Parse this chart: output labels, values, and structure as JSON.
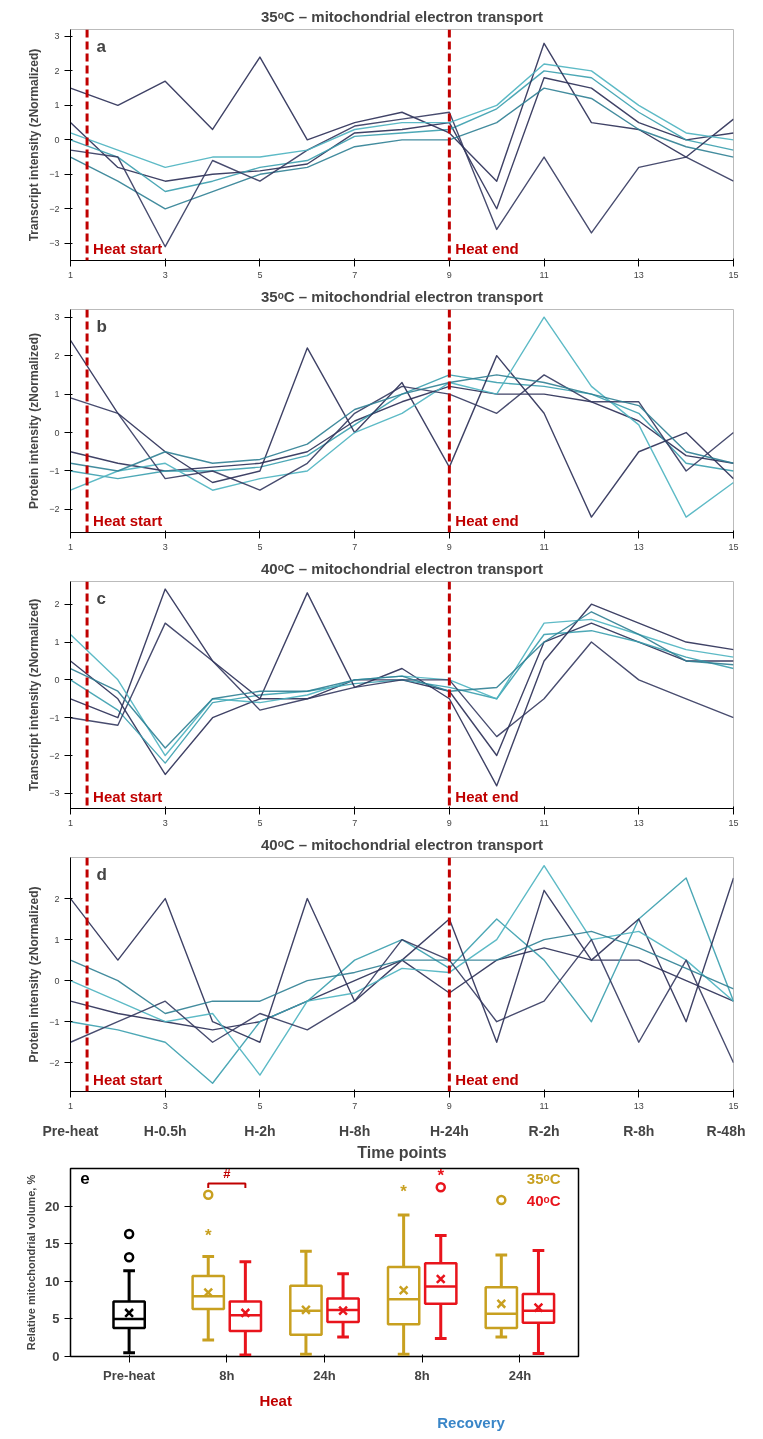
{
  "chart_data": [
    {
      "type": "line",
      "title": "35ᵒC – mitochondrial electron transport",
      "ylabel": "Transcript intensity (zNormalized)",
      "annotations": [
        "a"
      ],
      "x": [
        1,
        2,
        3,
        4,
        5,
        6,
        7,
        8,
        9,
        10,
        11,
        12,
        13,
        14,
        15
      ],
      "xlim": [
        1,
        15
      ],
      "xticks": [
        1,
        3,
        5,
        7,
        9,
        11,
        13,
        15
      ],
      "ylim": [
        -3.5,
        3.2
      ],
      "yticks": [
        -3,
        -2,
        -1,
        0,
        1,
        2,
        3
      ],
      "legend": false,
      "grid": false,
      "ref_lines": [
        {
          "axis": "x",
          "value": 1.35,
          "label": "Heat start",
          "color": "#c00000",
          "line_style": "dashed"
        },
        {
          "axis": "x",
          "value": 9,
          "label": "Heat end",
          "color": "#c00000",
          "line_style": "dashed"
        }
      ],
      "series": [
        {
          "color": "#2a2d55",
          "values": [
            0.5,
            -0.8,
            -1.2,
            -1.0,
            -0.9,
            -0.7,
            0.2,
            0.3,
            0.5,
            -2.0,
            1.8,
            1.5,
            0.5,
            0.0,
            0.2
          ]
        },
        {
          "color": "#3a9fae",
          "values": [
            0.0,
            -0.5,
            -1.5,
            -1.2,
            -0.8,
            -0.6,
            0.1,
            0.2,
            0.3,
            0.9,
            2.0,
            1.8,
            0.8,
            0.0,
            -0.3
          ]
        },
        {
          "color": "#2a2d55",
          "values": [
            1.5,
            1.0,
            1.7,
            0.3,
            2.4,
            0.0,
            0.5,
            0.8,
            0.2,
            -1.2,
            2.8,
            0.5,
            0.3,
            -0.5,
            0.6
          ]
        },
        {
          "color": "#2f7f94",
          "values": [
            -0.5,
            -1.2,
            -2.0,
            -1.5,
            -1.0,
            -0.8,
            -0.2,
            0.0,
            0.0,
            0.5,
            1.5,
            1.2,
            0.3,
            -0.2,
            -0.5
          ]
        },
        {
          "color": "#34385f",
          "values": [
            -0.3,
            -0.5,
            -3.1,
            -0.6,
            -1.2,
            -0.3,
            0.4,
            0.6,
            0.8,
            -2.6,
            -0.5,
            -2.7,
            -0.8,
            -0.5,
            -1.2
          ]
        },
        {
          "color": "#4bb3c0",
          "values": [
            0.2,
            -0.3,
            -0.8,
            -0.5,
            -0.5,
            -0.3,
            0.3,
            0.5,
            0.5,
            1.0,
            2.2,
            2.0,
            1.0,
            0.2,
            0.0
          ]
        }
      ]
    },
    {
      "type": "line",
      "title": "35ᵒC – mitochondrial electron transport",
      "ylabel": "Protein intensity (zNormalized)",
      "annotations": [
        "b"
      ],
      "x": [
        1,
        2,
        3,
        4,
        5,
        6,
        7,
        8,
        9,
        10,
        11,
        12,
        13,
        14,
        15
      ],
      "xlim": [
        1,
        15
      ],
      "xticks": [
        1,
        3,
        5,
        7,
        9,
        11,
        13,
        15
      ],
      "ylim": [
        -2.6,
        3.2
      ],
      "yticks": [
        -2,
        -1,
        0,
        1,
        2,
        3
      ],
      "legend": false,
      "grid": false,
      "ref_lines": [
        {
          "axis": "x",
          "value": 1.35,
          "label": "Heat start",
          "color": "#c00000",
          "line_style": "dashed"
        },
        {
          "axis": "x",
          "value": 9,
          "label": "Heat end",
          "color": "#c00000",
          "line_style": "dashed"
        }
      ],
      "series": [
        {
          "color": "#2a2d55",
          "values": [
            -0.5,
            -0.8,
            -1.0,
            -0.9,
            -0.8,
            -0.5,
            0.3,
            0.8,
            1.2,
            1.0,
            1.0,
            0.8,
            0.3,
            -0.6,
            -0.8
          ]
        },
        {
          "color": "#3a9fae",
          "values": [
            -1.0,
            -1.2,
            -1.0,
            -1.0,
            -0.9,
            -0.6,
            0.2,
            1.0,
            1.5,
            1.3,
            1.2,
            1.0,
            0.5,
            -0.8,
            -1.0
          ]
        },
        {
          "color": "#2a2d55",
          "values": [
            2.4,
            0.5,
            -0.5,
            -1.3,
            -1.0,
            2.2,
            0.0,
            1.3,
            -0.9,
            2.0,
            0.5,
            -2.2,
            -0.5,
            0.0,
            -1.2
          ]
        },
        {
          "color": "#4bb3c0",
          "values": [
            -1.5,
            -1.0,
            -0.8,
            -1.5,
            -1.2,
            -1.0,
            0.0,
            0.5,
            1.3,
            1.0,
            3.0,
            1.2,
            0.2,
            -2.2,
            -1.3
          ]
        },
        {
          "color": "#34385f",
          "values": [
            0.9,
            0.5,
            -1.2,
            -1.0,
            -1.5,
            -0.8,
            0.5,
            1.2,
            1.0,
            0.5,
            1.5,
            0.8,
            0.8,
            -1.0,
            0.0
          ]
        },
        {
          "color": "#2f7f94",
          "values": [
            -0.8,
            -1.0,
            -0.5,
            -0.8,
            -0.7,
            -0.3,
            0.6,
            1.0,
            1.3,
            1.5,
            1.3,
            1.0,
            0.7,
            -0.5,
            -0.8
          ]
        }
      ]
    },
    {
      "type": "line",
      "title": "40ᵒC – mitochondrial electron transport",
      "ylabel": "Transcript intensity (zNormalized)",
      "annotations": [
        "c"
      ],
      "x": [
        1,
        2,
        3,
        4,
        5,
        6,
        7,
        8,
        9,
        10,
        11,
        12,
        13,
        14,
        15
      ],
      "xlim": [
        1,
        15
      ],
      "xticks": [
        1,
        3,
        5,
        7,
        9,
        11,
        13,
        15
      ],
      "ylim": [
        -3.4,
        2.6
      ],
      "yticks": [
        -3,
        -2,
        -1,
        0,
        1,
        2
      ],
      "legend": false,
      "grid": false,
      "ref_lines": [
        {
          "axis": "x",
          "value": 1.35,
          "label": "Heat start",
          "color": "#c00000",
          "line_style": "dashed"
        },
        {
          "axis": "x",
          "value": 9,
          "label": "Heat end",
          "color": "#c00000",
          "line_style": "dashed"
        }
      ],
      "series": [
        {
          "color": "#2a2d55",
          "values": [
            0.5,
            -0.5,
            -2.5,
            -1.0,
            -0.5,
            -0.5,
            0.0,
            0.0,
            -0.3,
            -2.0,
            1.0,
            1.5,
            1.0,
            0.5,
            0.5
          ]
        },
        {
          "color": "#3a9fae",
          "values": [
            0.0,
            -0.8,
            -2.2,
            -0.6,
            -0.4,
            -0.3,
            -0.1,
            0.0,
            -0.2,
            -0.5,
            1.2,
            1.3,
            1.0,
            0.6,
            0.3
          ]
        },
        {
          "color": "#2a2d55",
          "values": [
            -0.5,
            -1.0,
            2.4,
            0.5,
            -0.5,
            2.3,
            -0.2,
            0.3,
            -0.5,
            -2.8,
            0.5,
            2.0,
            1.5,
            1.0,
            0.8
          ]
        },
        {
          "color": "#4bb3c0",
          "values": [
            1.2,
            0.0,
            -2.0,
            -0.5,
            -0.6,
            -0.4,
            0.0,
            0.1,
            0.0,
            -0.5,
            1.5,
            1.6,
            1.2,
            0.8,
            0.6
          ]
        },
        {
          "color": "#34385f",
          "values": [
            -1.0,
            -1.2,
            1.5,
            0.5,
            -0.8,
            -0.5,
            -0.2,
            0.0,
            0.0,
            -1.5,
            -0.5,
            1.0,
            0.0,
            -0.5,
            -1.0
          ]
        },
        {
          "color": "#2f7f94",
          "values": [
            0.3,
            -0.3,
            -1.8,
            -0.5,
            -0.3,
            -0.3,
            0.0,
            0.1,
            -0.3,
            -0.2,
            1.0,
            1.8,
            1.2,
            0.5,
            0.4
          ]
        }
      ]
    },
    {
      "type": "line",
      "title": "40ᵒC – mitochondrial electron transport",
      "ylabel": "Protein intensity (zNormalized)",
      "xlabel": "Time points",
      "annotations": [
        "d",
        "Pre-heat",
        "H-0.5h",
        "H-2h",
        "H-8h",
        "H-24h",
        "R-2h",
        "R-8h",
        "R-48h"
      ],
      "x": [
        1,
        2,
        3,
        4,
        5,
        6,
        7,
        8,
        9,
        10,
        11,
        12,
        13,
        14,
        15
      ],
      "xlim": [
        1,
        15
      ],
      "xticks": [
        1,
        3,
        5,
        7,
        9,
        11,
        13,
        15
      ],
      "ylim": [
        -2.7,
        3.0
      ],
      "yticks": [
        -2,
        -1,
        0,
        1,
        2
      ],
      "legend": false,
      "grid": false,
      "ref_lines": [
        {
          "axis": "x",
          "value": 1.35,
          "label": "Heat start",
          "color": "#c00000",
          "line_style": "dashed"
        },
        {
          "axis": "x",
          "value": 9,
          "label": "Heat end",
          "color": "#c00000",
          "line_style": "dashed"
        }
      ],
      "series": [
        {
          "color": "#2a2d55",
          "values": [
            -0.5,
            -0.8,
            -1.0,
            -1.2,
            -1.0,
            -0.5,
            0.0,
            0.5,
            -0.3,
            0.5,
            0.8,
            0.5,
            0.5,
            0.0,
            -0.5
          ]
        },
        {
          "color": "#3a9fae",
          "values": [
            -1.0,
            -1.2,
            -1.5,
            -2.5,
            -1.0,
            -0.5,
            0.5,
            1.0,
            0.3,
            1.5,
            0.5,
            -1.0,
            1.5,
            2.5,
            -0.5
          ]
        },
        {
          "color": "#2a2d55",
          "values": [
            2.0,
            0.5,
            2.0,
            -1.0,
            -1.5,
            2.0,
            -0.5,
            0.5,
            1.5,
            -1.5,
            2.2,
            0.5,
            1.5,
            -1.0,
            2.5
          ]
        },
        {
          "color": "#4bb3c0",
          "values": [
            0.0,
            -0.5,
            -1.0,
            -0.8,
            -2.3,
            -0.5,
            -0.3,
            0.3,
            0.2,
            1.0,
            2.8,
            1.0,
            1.2,
            0.5,
            -0.5
          ]
        },
        {
          "color": "#34385f",
          "values": [
            -1.5,
            -1.0,
            -0.5,
            -1.5,
            -0.8,
            -1.2,
            -0.5,
            1.0,
            0.5,
            -1.0,
            -0.5,
            1.0,
            -1.5,
            0.5,
            -2.0
          ]
        },
        {
          "color": "#2f7f94",
          "values": [
            0.5,
            0.0,
            -0.8,
            -0.5,
            -0.5,
            0.0,
            0.2,
            0.5,
            0.5,
            0.5,
            1.0,
            1.2,
            0.8,
            0.3,
            -0.2
          ]
        }
      ]
    },
    {
      "type": "box",
      "ylabel": "Relative mitochondrial volume, %",
      "annotations": [
        "e",
        "#",
        "*",
        "*",
        "*",
        "Heat",
        "Recovery"
      ],
      "categories": [
        "Pre-heat",
        "8h",
        "24h",
        "8h",
        "24h"
      ],
      "ylim": [
        0,
        25
      ],
      "yticks": [
        0,
        5,
        10,
        15,
        20
      ],
      "legend": "top right",
      "grid": false,
      "series": [
        {
          "color": "#000000",
          "boxes": [
            {
              "low": 0.5,
              "q1": 3.8,
              "median": 5.0,
              "q3": 7.3,
              "high": 11.4,
              "mean": 5.8,
              "outliers": [
                13.2,
                16.3
              ]
            },
            null,
            null,
            null,
            null
          ]
        },
        {
          "name": "35ᵒC",
          "color": "#c8a020",
          "boxes": [
            null,
            {
              "low": 2.2,
              "q1": 6.3,
              "median": 8.0,
              "q3": 10.7,
              "high": 13.3,
              "mean": 8.5,
              "outliers": [
                21.5
              ]
            },
            {
              "low": 0.3,
              "q1": 2.9,
              "median": 6.1,
              "q3": 9.4,
              "high": 14.0,
              "mean": 6.2
            },
            {
              "low": 0.3,
              "q1": 4.3,
              "median": 7.6,
              "q3": 11.9,
              "high": 18.8,
              "mean": 8.8
            },
            {
              "low": 2.6,
              "q1": 3.8,
              "median": 5.7,
              "q3": 9.2,
              "high": 13.5,
              "mean": 7.0,
              "outliers": [
                20.8
              ]
            }
          ]
        },
        {
          "name": "40ᵒC",
          "color": "#e8141c",
          "boxes": [
            null,
            {
              "low": 0.2,
              "q1": 3.4,
              "median": 5.5,
              "q3": 7.3,
              "high": 12.6,
              "mean": 5.8
            },
            {
              "low": 2.6,
              "q1": 4.6,
              "median": 6.2,
              "q3": 7.7,
              "high": 11.0,
              "mean": 6.1
            },
            {
              "low": 2.4,
              "q1": 7.0,
              "median": 9.3,
              "q3": 12.4,
              "high": 16.1,
              "mean": 10.3,
              "outliers": [
                22.5
              ]
            },
            {
              "low": 0.4,
              "q1": 4.5,
              "median": 6.1,
              "q3": 8.3,
              "high": 14.1,
              "mean": 6.5
            }
          ]
        }
      ]
    }
  ]
}
